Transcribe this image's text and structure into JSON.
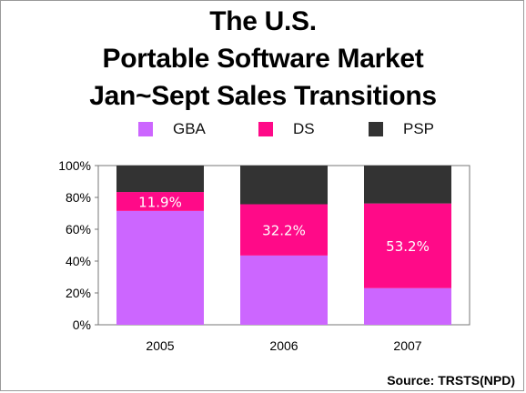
{
  "title": {
    "line1": "The U.S.",
    "line2": "Portable Software Market",
    "line3": "Jan~Sept Sales Transitions"
  },
  "legend": [
    {
      "name": "GBA",
      "color": "#cc66ff"
    },
    {
      "name": "DS",
      "color": "#ff0a88"
    },
    {
      "name": "PSP",
      "color": "#333333"
    }
  ],
  "source": "Source: TRSTS(NPD)",
  "chart_data": {
    "type": "bar",
    "stacked": true,
    "categories": [
      "2005",
      "2006",
      "2007"
    ],
    "series": [
      {
        "name": "GBA",
        "color": "#cc66ff",
        "values": [
          71.5,
          43.5,
          23.0
        ]
      },
      {
        "name": "DS",
        "color": "#ff0a88",
        "values": [
          11.9,
          32.2,
          53.2
        ]
      },
      {
        "name": "PSP",
        "color": "#333333",
        "values": [
          16.6,
          24.3,
          23.8
        ]
      }
    ],
    "data_labels": [
      "11.9%",
      "32.2%",
      "53.2%"
    ],
    "y_ticks": [
      "0%",
      "20%",
      "40%",
      "60%",
      "80%",
      "100%"
    ],
    "ylim": [
      0,
      100
    ],
    "xlabel": "",
    "ylabel": "",
    "legend_position": "top"
  }
}
